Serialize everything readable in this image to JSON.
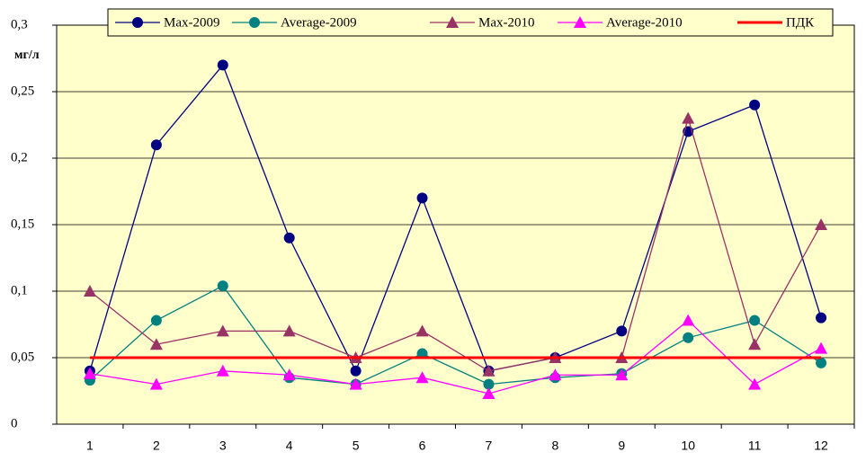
{
  "chart_data": {
    "type": "line",
    "y_label": "мг/л",
    "categories": [
      1,
      2,
      3,
      4,
      5,
      6,
      7,
      8,
      9,
      10,
      11,
      12
    ],
    "series": [
      {
        "name": "Max-2009",
        "color": "#000080",
        "marker": "circle",
        "values": [
          0.04,
          0.21,
          0.27,
          0.14,
          0.04,
          0.17,
          0.04,
          0.05,
          0.07,
          0.22,
          0.24,
          0.08
        ]
      },
      {
        "name": "Average-2009",
        "color": "#008080",
        "marker": "circle",
        "values": [
          0.033,
          0.078,
          0.104,
          0.035,
          0.03,
          0.053,
          0.03,
          0.035,
          0.038,
          0.065,
          0.078,
          0.046
        ]
      },
      {
        "name": "Max-2010",
        "color": "#993366",
        "marker": "triangle",
        "values": [
          0.1,
          0.06,
          0.07,
          0.07,
          0.05,
          0.07,
          0.04,
          0.05,
          0.05,
          0.23,
          0.06,
          0.15
        ]
      },
      {
        "name": "Average-2010",
        "color": "#FF00FF",
        "marker": "triangle",
        "values": [
          0.038,
          0.03,
          0.04,
          0.037,
          0.03,
          0.035,
          0.023,
          0.037,
          0.037,
          0.078,
          0.03,
          0.057
        ]
      },
      {
        "name": "ПДК",
        "color": "#FF0000",
        "values": [
          0.05,
          0.05,
          0.05,
          0.05,
          0.05,
          0.05,
          0.05,
          0.05,
          0.05,
          0.05,
          0.05,
          0.05
        ]
      }
    ],
    "ylim": [
      0,
      0.3
    ],
    "yticks": [
      0,
      {
        "value": 0.05,
        "label": "0,05"
      },
      {
        "value": 0.1,
        "label": "0,1"
      },
      {
        "value": 0.15,
        "label": "0,15"
      },
      {
        "value": 0.2,
        "label": "0,2"
      },
      {
        "value": 0.25,
        "label": "0,25"
      },
      {
        "value": 0.3,
        "label": "0,3"
      }
    ],
    "grid": true,
    "plot_background": "#FFFFCC",
    "legend_position": "top"
  }
}
